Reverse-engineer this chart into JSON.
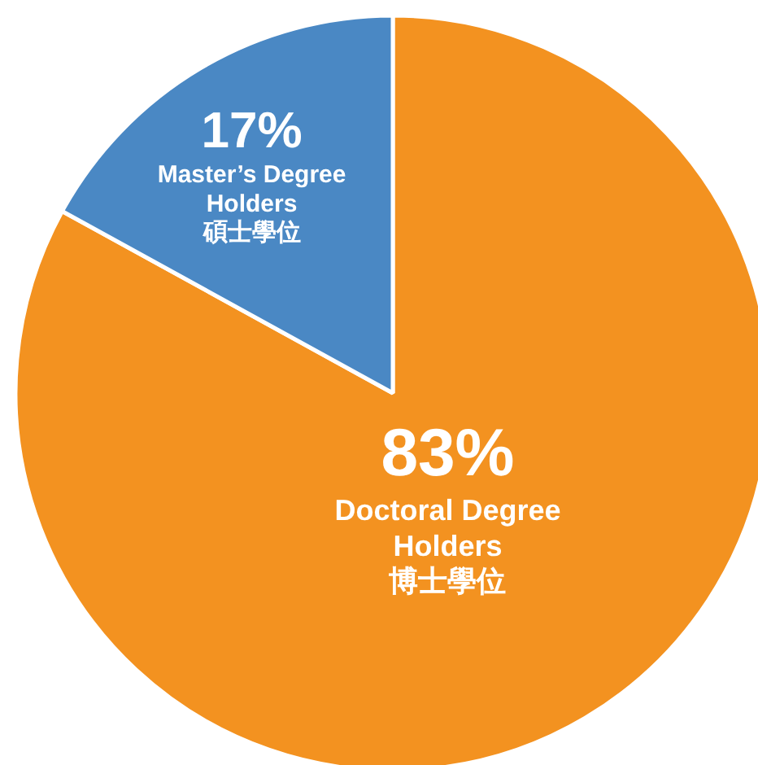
{
  "chart_data": {
    "type": "pie",
    "categories": [
      "Doctoral Degree\nHolders\n博士學位",
      "Master’s Degree\nHolders\n碩士學位"
    ],
    "values": [
      83,
      17
    ],
    "colors": [
      "#f39220",
      "#4a88c4"
    ],
    "value_labels": [
      "83%",
      "17%"
    ]
  }
}
